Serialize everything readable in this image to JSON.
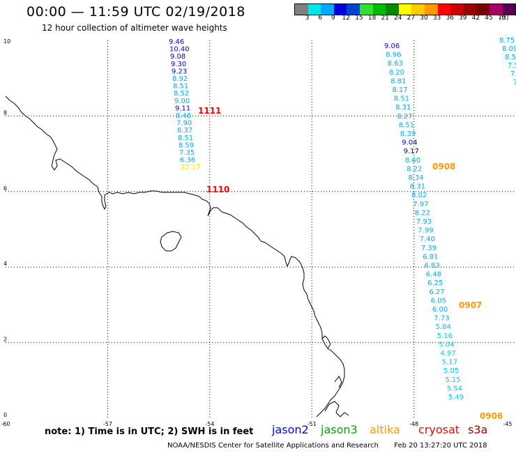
{
  "title": "00:00 — 11:59 UTC 02/19/2018",
  "subtitle": "12 hour collection of altimeter wave heights",
  "legend": {
    "colors": [
      "#808080",
      "#00e6e6",
      "#00aaff",
      "#0000dd",
      "#0044cc",
      "#33dd33",
      "#00bb00",
      "#008800",
      "#ffff00",
      "#ffcc00",
      "#ff9900",
      "#ff0000",
      "#cc0000",
      "#990000",
      "#770000",
      "#aa0066",
      "#550055",
      "#000000"
    ],
    "labels": [
      "3",
      "6",
      "9",
      "12",
      "15",
      "18",
      "21",
      "24",
      "27",
      "30",
      "33",
      "36",
      "39",
      "42",
      "45",
      "70"
    ],
    "unit": "(ft)"
  },
  "map": {
    "lon_range": [
      -60,
      -45
    ],
    "lat_range": [
      0,
      10
    ],
    "lon_ticks": [
      "-60",
      "-57",
      "-54",
      "-51",
      "-48",
      "-45"
    ],
    "lat_ticks": [
      "0",
      "2",
      "4",
      "6",
      "8",
      "10"
    ]
  },
  "tracks": [
    {
      "satellite": "jason2",
      "values": [
        {
          "v": "9.46",
          "c": "#0000dd"
        },
        {
          "v": "10.40",
          "c": "#0000dd"
        },
        {
          "v": "9.08",
          "c": "#0000dd"
        },
        {
          "v": "9.30",
          "c": "#0000dd"
        },
        {
          "v": "9.23",
          "c": "#0000dd"
        },
        {
          "v": "8.92",
          "c": "#00aaff"
        },
        {
          "v": "8.51",
          "c": "#00aaff"
        },
        {
          "v": "8.52",
          "c": "#00aaff"
        },
        {
          "v": "9.00",
          "c": "#00aaff"
        },
        {
          "v": "9.11",
          "c": "#0000dd"
        },
        {
          "v": "8.46",
          "c": "#00aaff"
        },
        {
          "v": "7.90",
          "c": "#00aaff"
        },
        {
          "v": "8.37",
          "c": "#00aaff"
        },
        {
          "v": "8.51",
          "c": "#00aaff"
        },
        {
          "v": "8.59",
          "c": "#00aaff"
        },
        {
          "v": "7.35",
          "c": "#00aaff"
        },
        {
          "v": "6.36",
          "c": "#00aaff"
        },
        {
          "v": "22.17",
          "c": "#ffdd00"
        }
      ],
      "times": [
        {
          "label": "1111",
          "color": "#ff0000"
        },
        {
          "label": "1110",
          "color": "#ff0000"
        }
      ]
    },
    {
      "satellite": "cryosat",
      "values": [
        {
          "v": "9.06",
          "c": "#0000dd"
        },
        {
          "v": "8.96",
          "c": "#00aaff"
        },
        {
          "v": "8.63",
          "c": "#00aaff"
        },
        {
          "v": "8.20",
          "c": "#00aaff"
        },
        {
          "v": "8.81",
          "c": "#00aaff"
        },
        {
          "v": "8.17",
          "c": "#00aaff"
        },
        {
          "v": "8.51",
          "c": "#00aaff"
        },
        {
          "v": "8.31",
          "c": "#00aaff"
        },
        {
          "v": "8.27",
          "c": "#00aaff"
        },
        {
          "v": "8.51",
          "c": "#00aaff"
        },
        {
          "v": "8.39",
          "c": "#00aaff"
        },
        {
          "v": "9.04",
          "c": "#0000dd"
        },
        {
          "v": "9.17",
          "c": "#0000dd"
        },
        {
          "v": "8.60",
          "c": "#00aaff"
        },
        {
          "v": "8.22",
          "c": "#00aaff"
        },
        {
          "v": "8.34",
          "c": "#00aaff"
        },
        {
          "v": "8.31",
          "c": "#00aaff"
        },
        {
          "v": "8.02",
          "c": "#00aaff"
        },
        {
          "v": "7.97",
          "c": "#00aaff"
        },
        {
          "v": "8.22",
          "c": "#00aaff"
        },
        {
          "v": "7.93",
          "c": "#00aaff"
        },
        {
          "v": "7.99",
          "c": "#00aaff"
        },
        {
          "v": "7.40",
          "c": "#00aaff"
        },
        {
          "v": "7.39",
          "c": "#00aaff"
        },
        {
          "v": "6.81",
          "c": "#00aaff"
        },
        {
          "v": "6.83",
          "c": "#00aaff"
        },
        {
          "v": "6.48",
          "c": "#00aaff"
        },
        {
          "v": "6.25",
          "c": "#00aaff"
        },
        {
          "v": "6.27",
          "c": "#00aaff"
        },
        {
          "v": "6.05",
          "c": "#00aaff"
        },
        {
          "v": "6.00",
          "c": "#00aaff"
        },
        {
          "v": "7.73",
          "c": "#00aaff"
        },
        {
          "v": "5.84",
          "c": "#00c8e6"
        },
        {
          "v": "5.16",
          "c": "#00c8e6"
        },
        {
          "v": "5.04",
          "c": "#00c8e6"
        },
        {
          "v": "4.97",
          "c": "#00c8e6"
        },
        {
          "v": "5.17",
          "c": "#00c8e6"
        },
        {
          "v": "5.05",
          "c": "#00c8e6"
        },
        {
          "v": "5.15",
          "c": "#00c8e6"
        },
        {
          "v": "5.54",
          "c": "#00c8e6"
        },
        {
          "v": "5.49",
          "c": "#00c8e6"
        }
      ],
      "times": [
        {
          "label": "0908",
          "color": "#ff9900"
        },
        {
          "label": "0907",
          "color": "#ff9900"
        },
        {
          "label": "0906",
          "color": "#ff9900"
        }
      ]
    },
    {
      "satellite": "edge",
      "values": [
        {
          "v": "8.75",
          "c": "#00aaff"
        },
        {
          "v": "8.09",
          "c": "#00aaff"
        },
        {
          "v": "8.5",
          "c": "#00aaff"
        },
        {
          "v": "7.5",
          "c": "#00aaff"
        },
        {
          "v": "7.",
          "c": "#00aaff"
        },
        {
          "v": "7",
          "c": "#00aaff"
        },
        {
          "v": "7",
          "c": "#00aaff"
        }
      ]
    }
  ],
  "note": "note: 1) Time is in UTC; 2) SWH is in feet",
  "satellites": [
    {
      "name": "jason2",
      "color": "#0000ff"
    },
    {
      "name": "jason3",
      "color": "#00aa00"
    },
    {
      "name": "altika",
      "color": "#ff9900"
    },
    {
      "name": "cryosat",
      "color": "#ff0000"
    },
    {
      "name": "s3a",
      "color": "#aa0000"
    }
  ],
  "credit": "NOAA/NESDIS Center for Satellite Applications and Research",
  "timestamp": "Feb 20 13:27:20 UTC 2018"
}
